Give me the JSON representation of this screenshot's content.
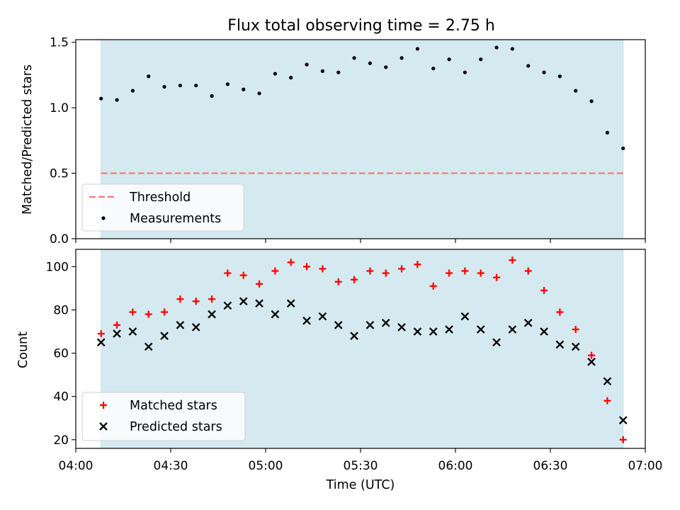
{
  "title": "Flux total observing time = 2.75 h",
  "colors": {
    "shade": "#d4eaf0",
    "threshold": "#f07878",
    "matched": "#ff0000",
    "predicted": "#000000",
    "measurement": "#000000"
  },
  "chart_data": [
    {
      "type": "scatter",
      "ylabel": "Matched/Predicted stars",
      "ylim": [
        0,
        1.52
      ],
      "yticks": [
        0,
        0.5,
        1.0,
        1.5
      ],
      "ytick_labels": [
        "0.0",
        "0.5",
        "1.0",
        "1.5"
      ],
      "xlim": [
        "04:00",
        "07:00"
      ],
      "shaded_span": [
        "04:08",
        "06:53"
      ],
      "threshold": {
        "name": "Threshold",
        "value": 0.5,
        "style": "dashed"
      },
      "legend": [
        "Threshold",
        "Measurements"
      ],
      "legend_position": "lower left",
      "series": [
        {
          "name": "Measurements",
          "marker": "dot",
          "x": [
            "04:08",
            "04:13",
            "04:18",
            "04:23",
            "04:28",
            "04:33",
            "04:38",
            "04:43",
            "04:48",
            "04:53",
            "04:58",
            "05:03",
            "05:08",
            "05:13",
            "05:18",
            "05:23",
            "05:28",
            "05:33",
            "05:38",
            "05:43",
            "05:48",
            "05:53",
            "05:58",
            "06:03",
            "06:08",
            "06:13",
            "06:18",
            "06:23",
            "06:28",
            "06:33",
            "06:38",
            "06:43",
            "06:48",
            "06:53"
          ],
          "values": [
            1.07,
            1.06,
            1.13,
            1.24,
            1.16,
            1.17,
            1.17,
            1.09,
            1.18,
            1.14,
            1.11,
            1.26,
            1.23,
            1.33,
            1.28,
            1.27,
            1.38,
            1.34,
            1.31,
            1.38,
            1.45,
            1.3,
            1.37,
            1.27,
            1.37,
            1.46,
            1.45,
            1.32,
            1.27,
            1.24,
            1.13,
            1.05,
            0.81,
            0.69
          ]
        }
      ]
    },
    {
      "type": "scatter",
      "ylabel": "Count",
      "xlabel": "Time (UTC)",
      "ylim": [
        16,
        108
      ],
      "yticks": [
        20,
        40,
        60,
        80,
        100
      ],
      "ytick_labels": [
        "20",
        "40",
        "60",
        "80",
        "100"
      ],
      "xlim": [
        "04:00",
        "07:00"
      ],
      "xticks": [
        "04:00",
        "04:30",
        "05:00",
        "05:30",
        "06:00",
        "06:30",
        "07:00"
      ],
      "shaded_span": [
        "04:08",
        "06:53"
      ],
      "legend": [
        "Matched stars",
        "Predicted stars"
      ],
      "legend_position": "lower left",
      "series": [
        {
          "name": "Matched stars",
          "marker": "plus",
          "x": [
            "04:08",
            "04:13",
            "04:18",
            "04:23",
            "04:28",
            "04:33",
            "04:38",
            "04:43",
            "04:48",
            "04:53",
            "04:58",
            "05:03",
            "05:08",
            "05:13",
            "05:18",
            "05:23",
            "05:28",
            "05:33",
            "05:38",
            "05:43",
            "05:48",
            "05:53",
            "05:58",
            "06:03",
            "06:08",
            "06:13",
            "06:18",
            "06:23",
            "06:28",
            "06:33",
            "06:38",
            "06:43",
            "06:48",
            "06:53"
          ],
          "values": [
            69,
            73,
            79,
            78,
            79,
            85,
            84,
            85,
            97,
            96,
            92,
            98,
            102,
            100,
            99,
            93,
            94,
            98,
            97,
            99,
            101,
            91,
            97,
            98,
            97,
            95,
            103,
            98,
            89,
            79,
            71,
            59,
            38,
            20
          ]
        },
        {
          "name": "Predicted stars",
          "marker": "x",
          "x": [
            "04:08",
            "04:13",
            "04:18",
            "04:23",
            "04:28",
            "04:33",
            "04:38",
            "04:43",
            "04:48",
            "04:53",
            "04:58",
            "05:03",
            "05:08",
            "05:13",
            "05:18",
            "05:23",
            "05:28",
            "05:33",
            "05:38",
            "05:43",
            "05:48",
            "05:53",
            "05:58",
            "06:03",
            "06:08",
            "06:13",
            "06:18",
            "06:23",
            "06:28",
            "06:33",
            "06:38",
            "06:43",
            "06:48",
            "06:53"
          ],
          "values": [
            65,
            69,
            70,
            63,
            68,
            73,
            72,
            78,
            82,
            84,
            83,
            78,
            83,
            75,
            77,
            73,
            68,
            73,
            74,
            72,
            70,
            70,
            71,
            77,
            71,
            65,
            71,
            74,
            70,
            64,
            63,
            56,
            47,
            29
          ]
        }
      ]
    }
  ]
}
